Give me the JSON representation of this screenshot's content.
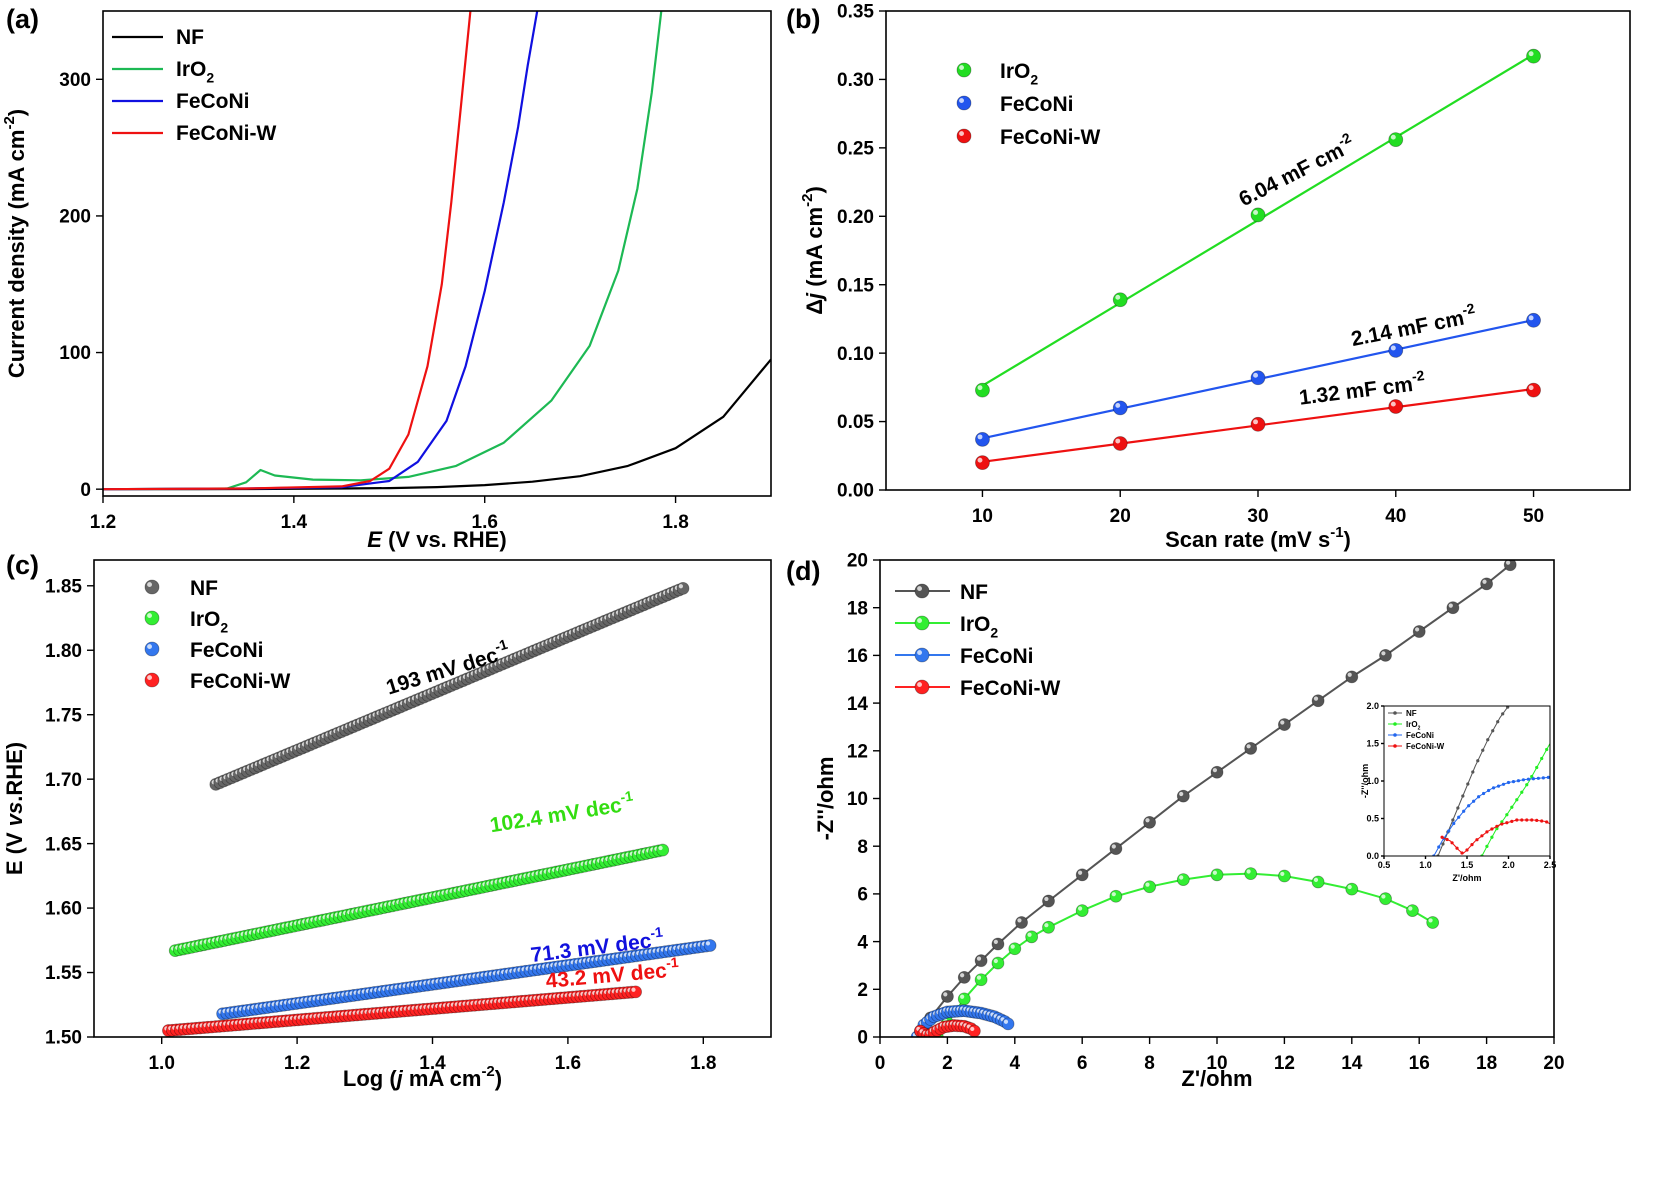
{
  "chart_data": [
    {
      "panel_label": "(a)",
      "type": "line",
      "xlabel_italic": "E",
      "xlabel_rest": " (V vs. RHE)",
      "ylabel": "Current density (mA cm",
      "ylabel_sup": "-2",
      "ylabel_close": ")",
      "xlim": [
        1.2,
        1.9
      ],
      "ylim": [
        -5,
        350
      ],
      "xticks": [
        "1.2",
        "1.4",
        "1.6",
        "1.8"
      ],
      "yticks": [
        "0",
        "100",
        "200",
        "300"
      ],
      "legend_position": "top-left",
      "series": [
        {
          "name": "NF",
          "name_sub": "",
          "name_rest": "",
          "color": "#000000",
          "x": [
            1.2,
            1.3,
            1.4,
            1.45,
            1.5,
            1.55,
            1.6,
            1.65,
            1.7,
            1.75,
            1.8,
            1.85,
            1.9
          ],
          "y": [
            0,
            0,
            0.3,
            0.5,
            0.8,
            1.5,
            3,
            5.5,
            9.5,
            17,
            30,
            53,
            95
          ]
        },
        {
          "name": "IrO",
          "name_sub": "2",
          "name_rest": "",
          "color": "#1db954",
          "x": [
            1.2,
            1.33,
            1.35,
            1.365,
            1.38,
            1.42,
            1.47,
            1.52,
            1.57,
            1.62,
            1.67,
            1.71,
            1.74,
            1.76,
            1.775,
            1.785
          ],
          "y": [
            0,
            0.5,
            5,
            14,
            10,
            7,
            6.5,
            9,
            17,
            34,
            65,
            105,
            160,
            220,
            290,
            350
          ]
        },
        {
          "name": "FeCoNi",
          "name_sub": "",
          "name_rest": "",
          "color": "#1010e0",
          "x": [
            1.2,
            1.35,
            1.45,
            1.5,
            1.53,
            1.56,
            1.58,
            1.6,
            1.62,
            1.635,
            1.645,
            1.655
          ],
          "y": [
            0,
            0.5,
            1.5,
            6,
            20,
            50,
            90,
            145,
            210,
            265,
            310,
            350
          ]
        },
        {
          "name": "FeCoNi-W",
          "name_sub": "",
          "name_rest": "",
          "color": "#ee1111",
          "x": [
            1.2,
            1.35,
            1.45,
            1.48,
            1.5,
            1.52,
            1.54,
            1.555,
            1.565,
            1.575,
            1.585
          ],
          "y": [
            0,
            0.5,
            2,
            6,
            15,
            40,
            90,
            150,
            210,
            280,
            350
          ]
        }
      ]
    },
    {
      "panel_label": "(b)",
      "type": "scatter",
      "xlabel": "Scan rate (mV s",
      "xlabel_sup": "-1",
      "xlabel_close": ")",
      "ylabel_pre": "Δ",
      "ylabel_italic": "j",
      "ylabel": " (mA cm",
      "ylabel_sup": "-2",
      "ylabel_close": ")",
      "xlim": [
        3,
        57
      ],
      "ylim": [
        0,
        0.35
      ],
      "xticks": [
        "10",
        "20",
        "30",
        "40",
        "50"
      ],
      "yticks": [
        "0.00",
        "0.05",
        "0.10",
        "0.15",
        "0.20",
        "0.25",
        "0.30",
        "0.35"
      ],
      "legend_position": "top-left",
      "series": [
        {
          "name": "IrO",
          "name_sub": "2",
          "color": "#22dd22",
          "x": [
            10,
            20,
            30,
            40,
            50
          ],
          "y": [
            0.073,
            0.139,
            0.201,
            0.256,
            0.317
          ]
        },
        {
          "name": "FeCoNi",
          "name_sub": "",
          "color": "#2255ee",
          "x": [
            10,
            20,
            30,
            40,
            50
          ],
          "y": [
            0.037,
            0.06,
            0.082,
            0.102,
            0.124
          ]
        },
        {
          "name": "FeCoNi-W",
          "name_sub": "",
          "color": "#ee1111",
          "x": [
            10,
            20,
            30,
            40,
            50
          ],
          "y": [
            0.02,
            0.034,
            0.048,
            0.061,
            0.073
          ]
        }
      ],
      "annotations": [
        {
          "text": "6.04 mF cm",
          "sup": "-2",
          "color": "#000000"
        },
        {
          "text": "2.14 mF cm",
          "sup": "-2",
          "color": "#000000"
        },
        {
          "text": "1.32 mF cm",
          "sup": "-2",
          "color": "#000000"
        }
      ]
    },
    {
      "panel_label": "(c)",
      "type": "scatter",
      "xlabel": "Log (",
      "xlabel_italic": "j",
      "xlabel_rest": " mA cm",
      "xlabel_sup": "-2",
      "xlabel_close": ")",
      "ylabel": "E (V ",
      "ylabel_italic": "vs",
      "ylabel_rest": ".RHE)",
      "xlim": [
        0.9,
        1.9
      ],
      "ylim": [
        1.5,
        1.87
      ],
      "xticks": [
        "1.0",
        "1.2",
        "1.4",
        "1.6",
        "1.8"
      ],
      "yticks": [
        "1.50",
        "1.55",
        "1.60",
        "1.65",
        "1.70",
        "1.75",
        "1.80",
        "1.85"
      ],
      "legend_position": "top-left",
      "series": [
        {
          "name": "NF",
          "name_sub": "",
          "color": "#666666",
          "x_start": 1.08,
          "x_end": 1.77,
          "y_start": 1.696,
          "y_end": 1.848
        },
        {
          "name": "IrO",
          "name_sub": "2",
          "color": "#33ee33",
          "x_start": 1.02,
          "x_end": 1.74,
          "y_start": 1.567,
          "y_end": 1.645
        },
        {
          "name": "FeCoNi",
          "name_sub": "",
          "color": "#3377ee",
          "x_start": 1.09,
          "x_end": 1.81,
          "y_start": 1.518,
          "y_end": 1.571
        },
        {
          "name": "FeCoNi-W",
          "name_sub": "",
          "color": "#ff2222",
          "x_start": 1.01,
          "x_end": 1.7,
          "y_start": 1.505,
          "y_end": 1.535
        }
      ],
      "annotations": [
        {
          "text": "193 mV dec",
          "sup": "-1",
          "color": "#000000"
        },
        {
          "text": "102.4 mV dec",
          "sup": "-1",
          "color": "#33dd11"
        },
        {
          "text": "71.3 mV dec",
          "sup": "-1",
          "color": "#1111dd"
        },
        {
          "text": "43.2 mV dec",
          "sup": "-1",
          "color": "#ee1111"
        }
      ]
    },
    {
      "panel_label": "(d)",
      "type": "line",
      "xlabel": "Z'/ohm",
      "ylabel": "-Z''/ohm",
      "xlim": [
        0,
        20
      ],
      "ylim": [
        0,
        20
      ],
      "xticks": [
        "0",
        "2",
        "4",
        "6",
        "8",
        "10",
        "12",
        "14",
        "16",
        "18",
        "20"
      ],
      "yticks": [
        "0",
        "2",
        "4",
        "6",
        "8",
        "10",
        "12",
        "14",
        "16",
        "18",
        "20"
      ],
      "legend_position": "top-left",
      "series": [
        {
          "name": "NF",
          "name_sub": "",
          "color": "#555555",
          "x": [
            1.15,
            1.5,
            2.0,
            2.5,
            3.0,
            3.5,
            4.2,
            5.0,
            6.0,
            7.0,
            8.0,
            9.0,
            10.0,
            11.0,
            12.0,
            13.0,
            14.0,
            15.0,
            16.0,
            17.0,
            18.0,
            18.7
          ],
          "y": [
            0,
            0.8,
            1.7,
            2.5,
            3.2,
            3.9,
            4.8,
            5.7,
            6.8,
            7.9,
            9.0,
            10.1,
            11.1,
            12.1,
            13.1,
            14.1,
            15.1,
            16.0,
            17.0,
            18.0,
            19.0,
            19.8
          ]
        },
        {
          "name": "IrO",
          "name_sub": "2",
          "color": "#33ee33",
          "x": [
            1.7,
            2.0,
            2.5,
            3.0,
            3.5,
            4.0,
            4.5,
            5.0,
            6.0,
            7.0,
            8.0,
            9.0,
            10.0,
            11.0,
            12.0,
            13.0,
            14.0,
            15.0,
            15.8,
            16.4
          ],
          "y": [
            0,
            0.6,
            1.6,
            2.4,
            3.1,
            3.7,
            4.2,
            4.6,
            5.3,
            5.9,
            6.3,
            6.6,
            6.8,
            6.85,
            6.75,
            6.5,
            6.2,
            5.8,
            5.3,
            4.8
          ]
        },
        {
          "name": "FeCoNi",
          "name_sub": "",
          "color": "#3377ee",
          "x": [
            1.1,
            1.3,
            1.6,
            2.0,
            2.5,
            3.0,
            3.4,
            3.7,
            3.85
          ],
          "y": [
            0,
            0.5,
            0.85,
            1.05,
            1.1,
            1.0,
            0.85,
            0.65,
            0.5
          ]
        },
        {
          "name": "FeCoNi-W",
          "name_sub": "",
          "color": "#ff2222",
          "x": [
            1.2,
            1.3,
            1.45,
            1.6,
            1.9,
            2.2,
            2.5,
            2.7,
            2.8
          ],
          "y": [
            0.25,
            0.15,
            0.05,
            0.2,
            0.42,
            0.48,
            0.45,
            0.35,
            0.25
          ]
        }
      ],
      "inset": {
        "xlabel": "Z'/ohm",
        "ylabel": "-Z''/ohm",
        "xlim": [
          0.5,
          2.5
        ],
        "ylim": [
          0,
          2.0
        ],
        "xticks": [
          "0.5",
          "1.0",
          "1.5",
          "2.0",
          "2.5"
        ],
        "yticks": [
          "0.0",
          "0.5",
          "1.0",
          "1.5",
          "2.0"
        ],
        "series": [
          {
            "name": "NF",
            "name_sub": "",
            "color": "#555555",
            "x": [
              1.15,
              1.3,
              1.45,
              1.6,
              1.75,
              1.9,
              2.0
            ],
            "y": [
              0.0,
              0.4,
              0.8,
              1.2,
              1.55,
              1.85,
              2.0
            ]
          },
          {
            "name": "IrO",
            "name_sub": "2",
            "color": "#22ee22",
            "x": [
              1.68,
              1.75,
              1.85,
              1.95,
              2.1,
              2.25,
              2.4,
              2.5
            ],
            "y": [
              0.0,
              0.15,
              0.35,
              0.5,
              0.75,
              1.0,
              1.3,
              1.5
            ]
          },
          {
            "name": "FeCoNi",
            "name_sub": "",
            "color": "#2266ee",
            "x": [
              1.1,
              1.2,
              1.35,
              1.5,
              1.65,
              1.8,
              2.0,
              2.2,
              2.4,
              2.5
            ],
            "y": [
              0.0,
              0.2,
              0.45,
              0.65,
              0.8,
              0.9,
              0.98,
              1.02,
              1.04,
              1.05
            ]
          },
          {
            "name": "FeCoNi-W",
            "name_sub": "",
            "color": "#ee1111",
            "x": [
              1.2,
              1.3,
              1.4,
              1.45,
              1.5,
              1.6,
              1.75,
              1.9,
              2.1,
              2.3,
              2.45,
              2.5
            ],
            "y": [
              0.25,
              0.2,
              0.08,
              0.03,
              0.08,
              0.2,
              0.33,
              0.42,
              0.48,
              0.48,
              0.46,
              0.43
            ]
          }
        ]
      }
    }
  ]
}
